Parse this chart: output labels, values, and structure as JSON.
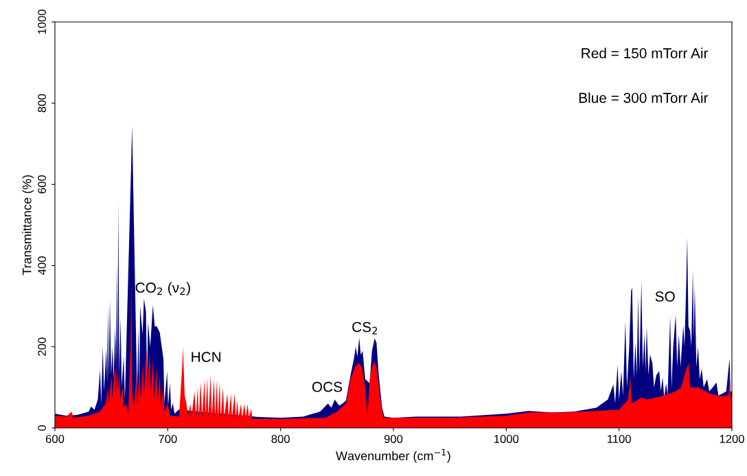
{
  "chart_data": {
    "type": "area",
    "xlabel": "Wavenumber (cm$^{−1}$)",
    "ylabel": "Transmittance (%)",
    "xlim": [
      600,
      1200
    ],
    "xticks": [
      600,
      700,
      800,
      900,
      1000,
      1100,
      1200
    ],
    "ylim": [
      0,
      1000
    ],
    "yticks": [
      0,
      200,
      400,
      600,
      800,
      1000
    ],
    "grid": false,
    "series": [
      {
        "color": "#000080",
        "x": [
          600,
          610,
          620,
          630,
          632,
          635,
          638,
          640,
          641,
          642.4,
          643.5,
          645.6,
          646.3,
          647,
          647.8,
          648.7,
          649.8,
          651,
          652,
          653.4,
          654.2,
          654.8,
          655.5,
          656.2,
          657,
          658.2,
          659.2,
          660.9,
          662,
          667.5,
          668.4,
          671.8,
          672.8,
          674,
          674.8,
          675.5,
          677.7,
          678.9,
          680.7,
          681.6,
          682.5,
          684.5,
          686.8,
          688.5,
          690.3,
          692.9,
          696.2,
          697,
          699.4,
          700.3,
          702,
          703,
          704.5,
          706,
          709.6,
          780,
          800,
          820,
          835,
          842,
          845,
          848,
          852,
          855,
          858,
          862,
          865,
          866.6,
          868,
          869.8,
          871,
          872.7,
          875,
          879,
          881,
          883.4,
          885,
          887,
          890,
          892,
          900,
          920,
          960,
          1000,
          1020,
          1040,
          1060,
          1080,
          1090,
          1095,
          1096.5,
          1098.7,
          1100,
          1102,
          1103.5,
          1105.6,
          1107,
          1109,
          1110.7,
          1111.6,
          1113,
          1114.5,
          1115.7,
          1116.9,
          1118,
          1119.8,
          1121,
          1122.5,
          1123.5,
          1124.5,
          1126,
          1127.5,
          1129.5,
          1131,
          1133,
          1135.6,
          1137,
          1138.6,
          1140,
          1141.7,
          1143,
          1145.3,
          1146.5,
          1148,
          1150.2,
          1151.5,
          1153,
          1154.5,
          1156.9,
          1158,
          1159.5,
          1160.4,
          1161.5,
          1163,
          1164,
          1165.4,
          1166.2,
          1167.1,
          1168.5,
          1170,
          1171.5,
          1173.2,
          1175,
          1178,
          1180,
          1183,
          1186.3,
          1188,
          1192,
          1195,
          1197.9,
          1198.8,
          1200
        ],
        "values": [
          35,
          30,
          32,
          40,
          53,
          45,
          70,
          144,
          60,
          201,
          90,
          196,
          110,
          296,
          120,
          317,
          130,
          200,
          120,
          247,
          150,
          406,
          150,
          558,
          130,
          271,
          100,
          178,
          70,
          640,
          744,
          239,
          90,
          245,
          100,
          300,
          230,
          319,
          286,
          120,
          260,
          200,
          303,
          250,
          250,
          235,
          169,
          60,
          140,
          55,
          110,
          45,
          61,
          35,
          45,
          27,
          25,
          28,
          40,
          60,
          50,
          70,
          55,
          60,
          68,
          130,
          170,
          200,
          175,
          222,
          180,
          190,
          120,
          110,
          190,
          221,
          210,
          130,
          50,
          28,
          25,
          28,
          28,
          35,
          42,
          38,
          40,
          50,
          70,
          107,
          60,
          155,
          70,
          140,
          80,
          262,
          100,
          200,
          338,
          345,
          120,
          210,
          130,
          324,
          140,
          363,
          150,
          230,
          140,
          250,
          130,
          180,
          160,
          100,
          130,
          140,
          90,
          124,
          75,
          110,
          80,
          275,
          100,
          200,
          279,
          150,
          230,
          150,
          253,
          200,
          350,
          470,
          250,
          239,
          200,
          390,
          220,
          348,
          150,
          200,
          120,
          146,
          100,
          120,
          90,
          100,
          112,
          80,
          85,
          90,
          171,
          90,
          90
        ]
      },
      {
        "color": "#ff0000",
        "x": [
          600,
          610,
          615,
          616,
          630,
          640,
          645,
          647,
          648,
          650,
          651,
          653,
          654,
          655,
          656,
          657,
          658,
          660,
          661,
          663,
          665,
          667,
          667.6,
          668.5,
          670,
          672,
          673,
          675,
          676,
          678,
          679,
          681,
          682,
          684,
          685,
          687,
          688,
          690,
          691,
          693,
          694,
          696,
          697,
          700,
          702,
          710,
          713,
          713.5,
          715,
          716.5,
          718,
          720,
          721,
          723.7,
          725,
          726.5,
          727.5,
          729.2,
          730.5,
          732.5,
          733.5,
          735,
          736,
          738,
          739,
          741,
          742,
          743.5,
          744.5,
          746,
          747,
          749,
          750,
          752.8,
          754,
          756,
          757,
          759.3,
          760.3,
          761.7,
          762.7,
          764.9,
          766,
          768,
          769,
          770.8,
          772,
          774,
          775,
          800,
          840,
          850,
          858,
          862,
          866,
          869,
          872,
          875,
          877,
          879,
          881,
          883,
          885,
          888,
          891,
          950,
          1000,
          1020,
          1050,
          1080,
          1100,
          1108,
          1110,
          1111,
          1120,
          1125,
          1140,
          1150,
          1155,
          1159,
          1161.6,
          1163,
          1170,
          1180,
          1190,
          1197,
          1198,
          1199,
          1200
        ],
        "values": [
          30,
          28,
          40,
          25,
          30,
          40,
          60,
          100,
          60,
          130,
          70,
          150,
          80,
          160,
          90,
          140,
          70,
          100,
          50,
          60,
          35,
          200,
          366,
          90,
          50,
          120,
          60,
          140,
          70,
          160,
          80,
          195,
          90,
          190,
          90,
          170,
          70,
          150,
          60,
          130,
          55,
          100,
          40,
          60,
          30,
          28,
          160,
          200,
          80,
          60,
          30,
          60,
          25,
          90,
          25,
          100,
          25,
          113,
          25,
          119,
          25,
          125,
          25,
          130,
          25,
          121,
          25,
          118,
          25,
          115,
          25,
          100,
          25,
          85,
          25,
          85,
          25,
          85,
          25,
          68,
          25,
          59,
          25,
          60,
          25,
          59,
          25,
          47,
          22,
          22,
          25,
          40,
          60,
          120,
          150,
          160,
          150,
          100,
          30,
          120,
          150,
          163,
          150,
          80,
          25,
          25,
          30,
          38,
          38,
          42,
          45,
          70,
          127,
          60,
          75,
          70,
          80,
          90,
          100,
          139,
          159,
          100,
          100,
          85,
          78,
          80,
          132,
          70,
          80
        ]
      }
    ],
    "annotations": [
      {
        "text": "CO$_{2}$ (ν$_{2}$)",
        "x": 667.6,
        "y": 366
      },
      {
        "text": "HCN",
        "x": 713.5,
        "y": 200
      },
      {
        "text": "OCS",
        "x": 848,
        "y": 70
      },
      {
        "text": "CS$_{2}$",
        "x": 869.8,
        "y": 222
      },
      {
        "text": "SO",
        "x": 1119.8,
        "y": 363
      },
      "Red = 150 mTorr Air",
      "Blue = 300 mTorr Air"
    ]
  }
}
